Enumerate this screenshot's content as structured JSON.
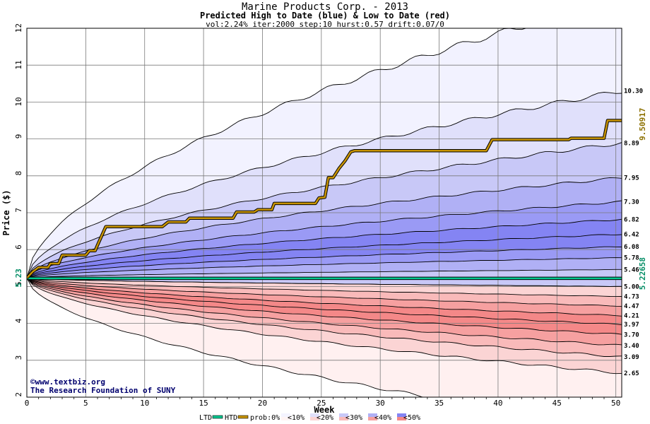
{
  "header": {
    "title": "Marine Products Corp. - 2013",
    "subtitle": "Predicted High to Date (blue) &  Low to Date (red)",
    "params": "vol:2.24% iter:2000 step:10 hurst:0.57 drift:0.07/0"
  },
  "credits": {
    "line1": "©www.textbiz.org",
    "line2": "The Research Foundation of SUNY"
  },
  "chart_data": {
    "type": "area",
    "xlabel": "Week",
    "ylabel": "Price ($)",
    "xlim": [
      0,
      50.5
    ],
    "ylim": [
      2,
      12
    ],
    "x_ticks": [
      0,
      5,
      10,
      15,
      20,
      25,
      30,
      35,
      40,
      45,
      50
    ],
    "y_ticks": [
      2,
      3,
      4,
      5,
      6,
      7,
      8,
      9,
      10,
      11,
      12
    ],
    "grid": true,
    "start_price": 5.23,
    "start_label": "5.23",
    "htd_final_label": "9.50917",
    "ltd_final_label": "5.22658",
    "colors": {
      "htd": "#c89400",
      "ltd": "#00c890",
      "end_label_htd": "#8c7000",
      "end_label_ltd": "#008c64"
    },
    "upper_bands": [
      {
        "end": 12.8,
        "label": "",
        "fill": "#f2f2ff"
      },
      {
        "end": 10.3,
        "label": "10.30",
        "fill": "#e0e0fb"
      },
      {
        "end": 8.89,
        "label": "8.89",
        "fill": "#c8c8f7"
      },
      {
        "end": 7.95,
        "label": "7.95",
        "fill": "#b0b0f5"
      },
      {
        "end": 7.3,
        "label": "7.30",
        "fill": "#9a9af5"
      },
      {
        "end": 6.82,
        "label": "6.82",
        "fill": "#8484f3"
      },
      {
        "end": 6.42,
        "label": "6.42",
        "fill": "#8484f3"
      },
      {
        "end": 6.08,
        "label": "6.08",
        "fill": "#9a9af5"
      },
      {
        "end": 5.78,
        "label": "5.78",
        "fill": "#b0b0f5"
      },
      {
        "end": 5.46,
        "label": "5.46",
        "fill": "#c8c8f7"
      },
      {
        "end": 5.0,
        "label": "5.00",
        "fill": "#e0e0fb"
      }
    ],
    "lower_bands": [
      {
        "end": 5.0,
        "label": "",
        "fill": "#fbd4d4"
      },
      {
        "end": 4.73,
        "label": "4.73",
        "fill": "#f9baba"
      },
      {
        "end": 4.47,
        "label": "4.47",
        "fill": "#f6a0a0"
      },
      {
        "end": 4.21,
        "label": "4.21",
        "fill": "#f48888"
      },
      {
        "end": 3.97,
        "label": "3.97",
        "fill": "#f48888"
      },
      {
        "end": 3.7,
        "label": "3.70",
        "fill": "#f6a0a0"
      },
      {
        "end": 3.4,
        "label": "3.40",
        "fill": "#f9baba"
      },
      {
        "end": 3.09,
        "label": "3.09",
        "fill": "#fbd4d4"
      },
      {
        "end": 2.65,
        "label": "2.65",
        "fill": "#fff0f0"
      },
      {
        "end": 1.2,
        "label": "",
        "fill": "#fff0f0"
      }
    ],
    "htd_path": [
      [
        0,
        5.23
      ],
      [
        0.5,
        5.4
      ],
      [
        1,
        5.52
      ],
      [
        1.8,
        5.52
      ],
      [
        2,
        5.62
      ],
      [
        2.7,
        5.62
      ],
      [
        3,
        5.85
      ],
      [
        5,
        5.85
      ],
      [
        5.3,
        5.97
      ],
      [
        5.8,
        5.97
      ],
      [
        6,
        6.12
      ],
      [
        6.7,
        6.62
      ],
      [
        11.5,
        6.62
      ],
      [
        12,
        6.75
      ],
      [
        13.5,
        6.75
      ],
      [
        13.8,
        6.85
      ],
      [
        17.5,
        6.85
      ],
      [
        17.8,
        7.02
      ],
      [
        19.3,
        7.02
      ],
      [
        19.6,
        7.08
      ],
      [
        20.8,
        7.08
      ],
      [
        21,
        7.25
      ],
      [
        24.5,
        7.25
      ],
      [
        24.8,
        7.4
      ],
      [
        25.3,
        7.42
      ],
      [
        25.6,
        7.95
      ],
      [
        26,
        7.95
      ],
      [
        26.5,
        8.2
      ],
      [
        27,
        8.4
      ],
      [
        27.5,
        8.65
      ],
      [
        27.8,
        8.68
      ],
      [
        39,
        8.68
      ],
      [
        39.5,
        8.98
      ],
      [
        46,
        8.98
      ],
      [
        46.2,
        9.02
      ],
      [
        49,
        9.02
      ],
      [
        49.3,
        9.5
      ],
      [
        50.5,
        9.5
      ]
    ],
    "ltd_level": 5.22,
    "legend": [
      {
        "type": "line",
        "label": "LTD",
        "color": "#00c890"
      },
      {
        "type": "line",
        "label": "HTD",
        "color": "#c89400"
      },
      {
        "type": "text",
        "label": "prob:0%"
      },
      {
        "type": "box",
        "label": "<10%",
        "fill": "#fff4f4",
        "fill2": "#f4f4ff"
      },
      {
        "type": "box",
        "label": "<20%",
        "fill": "#fbd4d4",
        "fill2": "#e0e0fb"
      },
      {
        "type": "box",
        "label": "<30%",
        "fill": "#f9baba",
        "fill2": "#c8c8f7"
      },
      {
        "type": "box",
        "label": "<40%",
        "fill": "#f6a0a0",
        "fill2": "#b0b0f5"
      },
      {
        "type": "box",
        "label": "<50%",
        "fill": "#f48888",
        "fill2": "#8484f3"
      }
    ]
  }
}
